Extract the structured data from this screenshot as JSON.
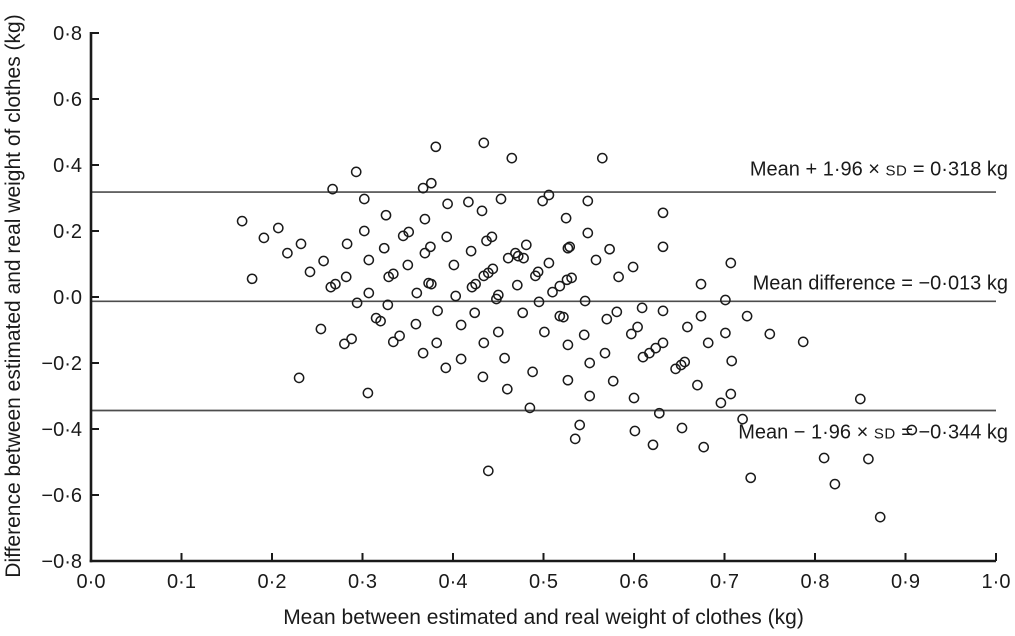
{
  "annotations": {
    "upper": {
      "prefix": "Mean + 1·96 × ",
      "sd": "SD",
      "suffix": " = 0·318 kg"
    },
    "mean": {
      "prefix": "Mean difference = −0·013 kg",
      "sd": "",
      "suffix": ""
    },
    "lower": {
      "prefix": "Mean − 1·96 × ",
      "sd": "SD",
      "suffix": " = −0·344 kg"
    }
  },
  "chart_data": {
    "type": "scatter",
    "title": "",
    "xlabel": "Mean between estimated and real weight of clothes (kg)",
    "ylabel": "Difference between estimated and real weight of clothes (kg)",
    "xlim": [
      0,
      1
    ],
    "ylim": [
      -0.8,
      0.8
    ],
    "grid": false,
    "legend": "none",
    "marker": "open-circle",
    "x_tick_values": [
      0,
      0.1,
      0.2,
      0.3,
      0.4,
      0.5,
      0.6,
      0.7,
      0.8,
      0.9,
      1.0
    ],
    "x_tick_labels": [
      "0·0",
      "0·1",
      "0·2",
      "0·3",
      "0·4",
      "0·5",
      "0·6",
      "0·7",
      "0·8",
      "0·9",
      "1·0"
    ],
    "y_tick_values": [
      0.8,
      0.6,
      0.4,
      0.2,
      0,
      -0.2,
      -0.4,
      -0.6,
      -0.8
    ],
    "y_tick_labels": [
      "0·8",
      "0·6",
      "0·4",
      "0·2",
      "0·0",
      "−0·2",
      "−0·4",
      "−0·6",
      "−0·8"
    ],
    "reference_lines": [
      {
        "name": "upper-loa-line",
        "value": 0.318,
        "label": "Mean + 1·96 × SD = 0·318 kg"
      },
      {
        "name": "mean-difference-line",
        "value": -0.013,
        "label": "Mean difference = −0·013 kg"
      },
      {
        "name": "lower-loa-line",
        "value": -0.344,
        "label": "Mean − 1·96 × SD = −0·344 kg"
      }
    ],
    "points": [
      [
        0.293,
        0.379
      ],
      [
        0.267,
        0.327
      ],
      [
        0.302,
        0.297
      ],
      [
        0.326,
        0.248
      ],
      [
        0.167,
        0.23
      ],
      [
        0.207,
        0.209
      ],
      [
        0.302,
        0.2
      ],
      [
        0.191,
        0.179
      ],
      [
        0.232,
        0.161
      ],
      [
        0.283,
        0.161
      ],
      [
        0.324,
        0.148
      ],
      [
        0.217,
        0.133
      ],
      [
        0.307,
        0.112
      ],
      [
        0.257,
        0.109
      ],
      [
        0.242,
        0.076
      ],
      [
        0.282,
        0.061
      ],
      [
        0.329,
        0.061
      ],
      [
        0.178,
        0.055
      ],
      [
        0.27,
        0.039
      ],
      [
        0.265,
        0.03
      ],
      [
        0.307,
        0.012
      ],
      [
        0.294,
        -0.018
      ],
      [
        0.328,
        -0.024
      ],
      [
        0.381,
        0.455
      ],
      [
        0.434,
        0.467
      ],
      [
        0.465,
        0.421
      ],
      [
        0.565,
        0.421
      ],
      [
        0.376,
        0.345
      ],
      [
        0.367,
        0.33
      ],
      [
        0.453,
        0.297
      ],
      [
        0.506,
        0.309
      ],
      [
        0.499,
        0.291
      ],
      [
        0.549,
        0.291
      ],
      [
        0.394,
        0.282
      ],
      [
        0.417,
        0.288
      ],
      [
        0.432,
        0.261
      ],
      [
        0.369,
        0.236
      ],
      [
        0.525,
        0.239
      ],
      [
        0.351,
        0.197
      ],
      [
        0.345,
        0.185
      ],
      [
        0.393,
        0.182
      ],
      [
        0.549,
        0.194
      ],
      [
        0.443,
        0.182
      ],
      [
        0.437,
        0.17
      ],
      [
        0.375,
        0.152
      ],
      [
        0.369,
        0.133
      ],
      [
        0.42,
        0.139
      ],
      [
        0.481,
        0.158
      ],
      [
        0.529,
        0.152
      ],
      [
        0.527,
        0.148
      ],
      [
        0.573,
        0.145
      ],
      [
        0.469,
        0.133
      ],
      [
        0.472,
        0.124
      ],
      [
        0.461,
        0.118
      ],
      [
        0.478,
        0.118
      ],
      [
        0.35,
        0.097
      ],
      [
        0.334,
        0.07
      ],
      [
        0.401,
        0.097
      ],
      [
        0.558,
        0.112
      ],
      [
        0.506,
        0.103
      ],
      [
        0.599,
        0.091
      ],
      [
        0.444,
        0.085
      ],
      [
        0.439,
        0.073
      ],
      [
        0.434,
        0.064
      ],
      [
        0.494,
        0.076
      ],
      [
        0.491,
        0.064
      ],
      [
        0.583,
        0.061
      ],
      [
        0.531,
        0.058
      ],
      [
        0.526,
        0.052
      ],
      [
        0.373,
        0.042
      ],
      [
        0.376,
        0.039
      ],
      [
        0.425,
        0.039
      ],
      [
        0.421,
        0.03
      ],
      [
        0.471,
        0.036
      ],
      [
        0.36,
        0.012
      ],
      [
        0.518,
        0.033
      ],
      [
        0.51,
        0.015
      ],
      [
        0.403,
        0.003
      ],
      [
        0.45,
        0.006
      ],
      [
        0.448,
        -0.006
      ],
      [
        0.495,
        -0.015
      ],
      [
        0.546,
        -0.012
      ],
      [
        0.632,
        0.255
      ],
      [
        0.632,
        0.152
      ],
      [
        0.707,
        0.103
      ],
      [
        0.674,
        0.039
      ],
      [
        0.701,
        -0.009
      ],
      [
        0.609,
        -0.033
      ],
      [
        0.254,
        -0.097
      ],
      [
        0.315,
        -0.064
      ],
      [
        0.32,
        -0.073
      ],
      [
        0.28,
        -0.142
      ],
      [
        0.288,
        -0.127
      ],
      [
        0.23,
        -0.245
      ],
      [
        0.306,
        -0.291
      ],
      [
        0.383,
        -0.042
      ],
      [
        0.424,
        -0.048
      ],
      [
        0.477,
        -0.048
      ],
      [
        0.518,
        -0.058
      ],
      [
        0.522,
        -0.061
      ],
      [
        0.57,
        -0.067
      ],
      [
        0.581,
        -0.045
      ],
      [
        0.359,
        -0.082
      ],
      [
        0.409,
        -0.085
      ],
      [
        0.501,
        -0.106
      ],
      [
        0.604,
        -0.091
      ],
      [
        0.45,
        -0.106
      ],
      [
        0.341,
        -0.118
      ],
      [
        0.334,
        -0.136
      ],
      [
        0.545,
        -0.115
      ],
      [
        0.597,
        -0.112
      ],
      [
        0.382,
        -0.139
      ],
      [
        0.434,
        -0.139
      ],
      [
        0.527,
        -0.145
      ],
      [
        0.367,
        -0.17
      ],
      [
        0.568,
        -0.17
      ],
      [
        0.409,
        -0.188
      ],
      [
        0.457,
        -0.185
      ],
      [
        0.551,
        -0.2
      ],
      [
        0.392,
        -0.215
      ],
      [
        0.488,
        -0.227
      ],
      [
        0.433,
        -0.242
      ],
      [
        0.527,
        -0.252
      ],
      [
        0.577,
        -0.255
      ],
      [
        0.46,
        -0.279
      ],
      [
        0.551,
        -0.3
      ],
      [
        0.6,
        -0.306
      ],
      [
        0.485,
        -0.336
      ],
      [
        0.54,
        -0.388
      ],
      [
        0.535,
        -0.43
      ],
      [
        0.439,
        -0.527
      ],
      [
        0.632,
        -0.042
      ],
      [
        0.674,
        -0.058
      ],
      [
        0.725,
        -0.058
      ],
      [
        0.659,
        -0.091
      ],
      [
        0.701,
        -0.109
      ],
      [
        0.75,
        -0.112
      ],
      [
        0.632,
        -0.139
      ],
      [
        0.682,
        -0.139
      ],
      [
        0.787,
        -0.136
      ],
      [
        0.617,
        -0.17
      ],
      [
        0.61,
        -0.182
      ],
      [
        0.624,
        -0.155
      ],
      [
        0.656,
        -0.197
      ],
      [
        0.708,
        -0.194
      ],
      [
        0.646,
        -0.218
      ],
      [
        0.652,
        -0.206
      ],
      [
        0.67,
        -0.267
      ],
      [
        0.696,
        -0.321
      ],
      [
        0.707,
        -0.294
      ],
      [
        0.85,
        -0.309
      ],
      [
        0.72,
        -0.37
      ],
      [
        0.677,
        -0.455
      ],
      [
        0.81,
        -0.488
      ],
      [
        0.859,
        -0.491
      ],
      [
        0.729,
        -0.548
      ],
      [
        0.822,
        -0.567
      ],
      [
        0.872,
        -0.667
      ],
      [
        0.907,
        -0.403
      ],
      [
        0.628,
        -0.352
      ],
      [
        0.653,
        -0.397
      ],
      [
        0.601,
        -0.406
      ],
      [
        0.621,
        -0.448
      ]
    ]
  }
}
